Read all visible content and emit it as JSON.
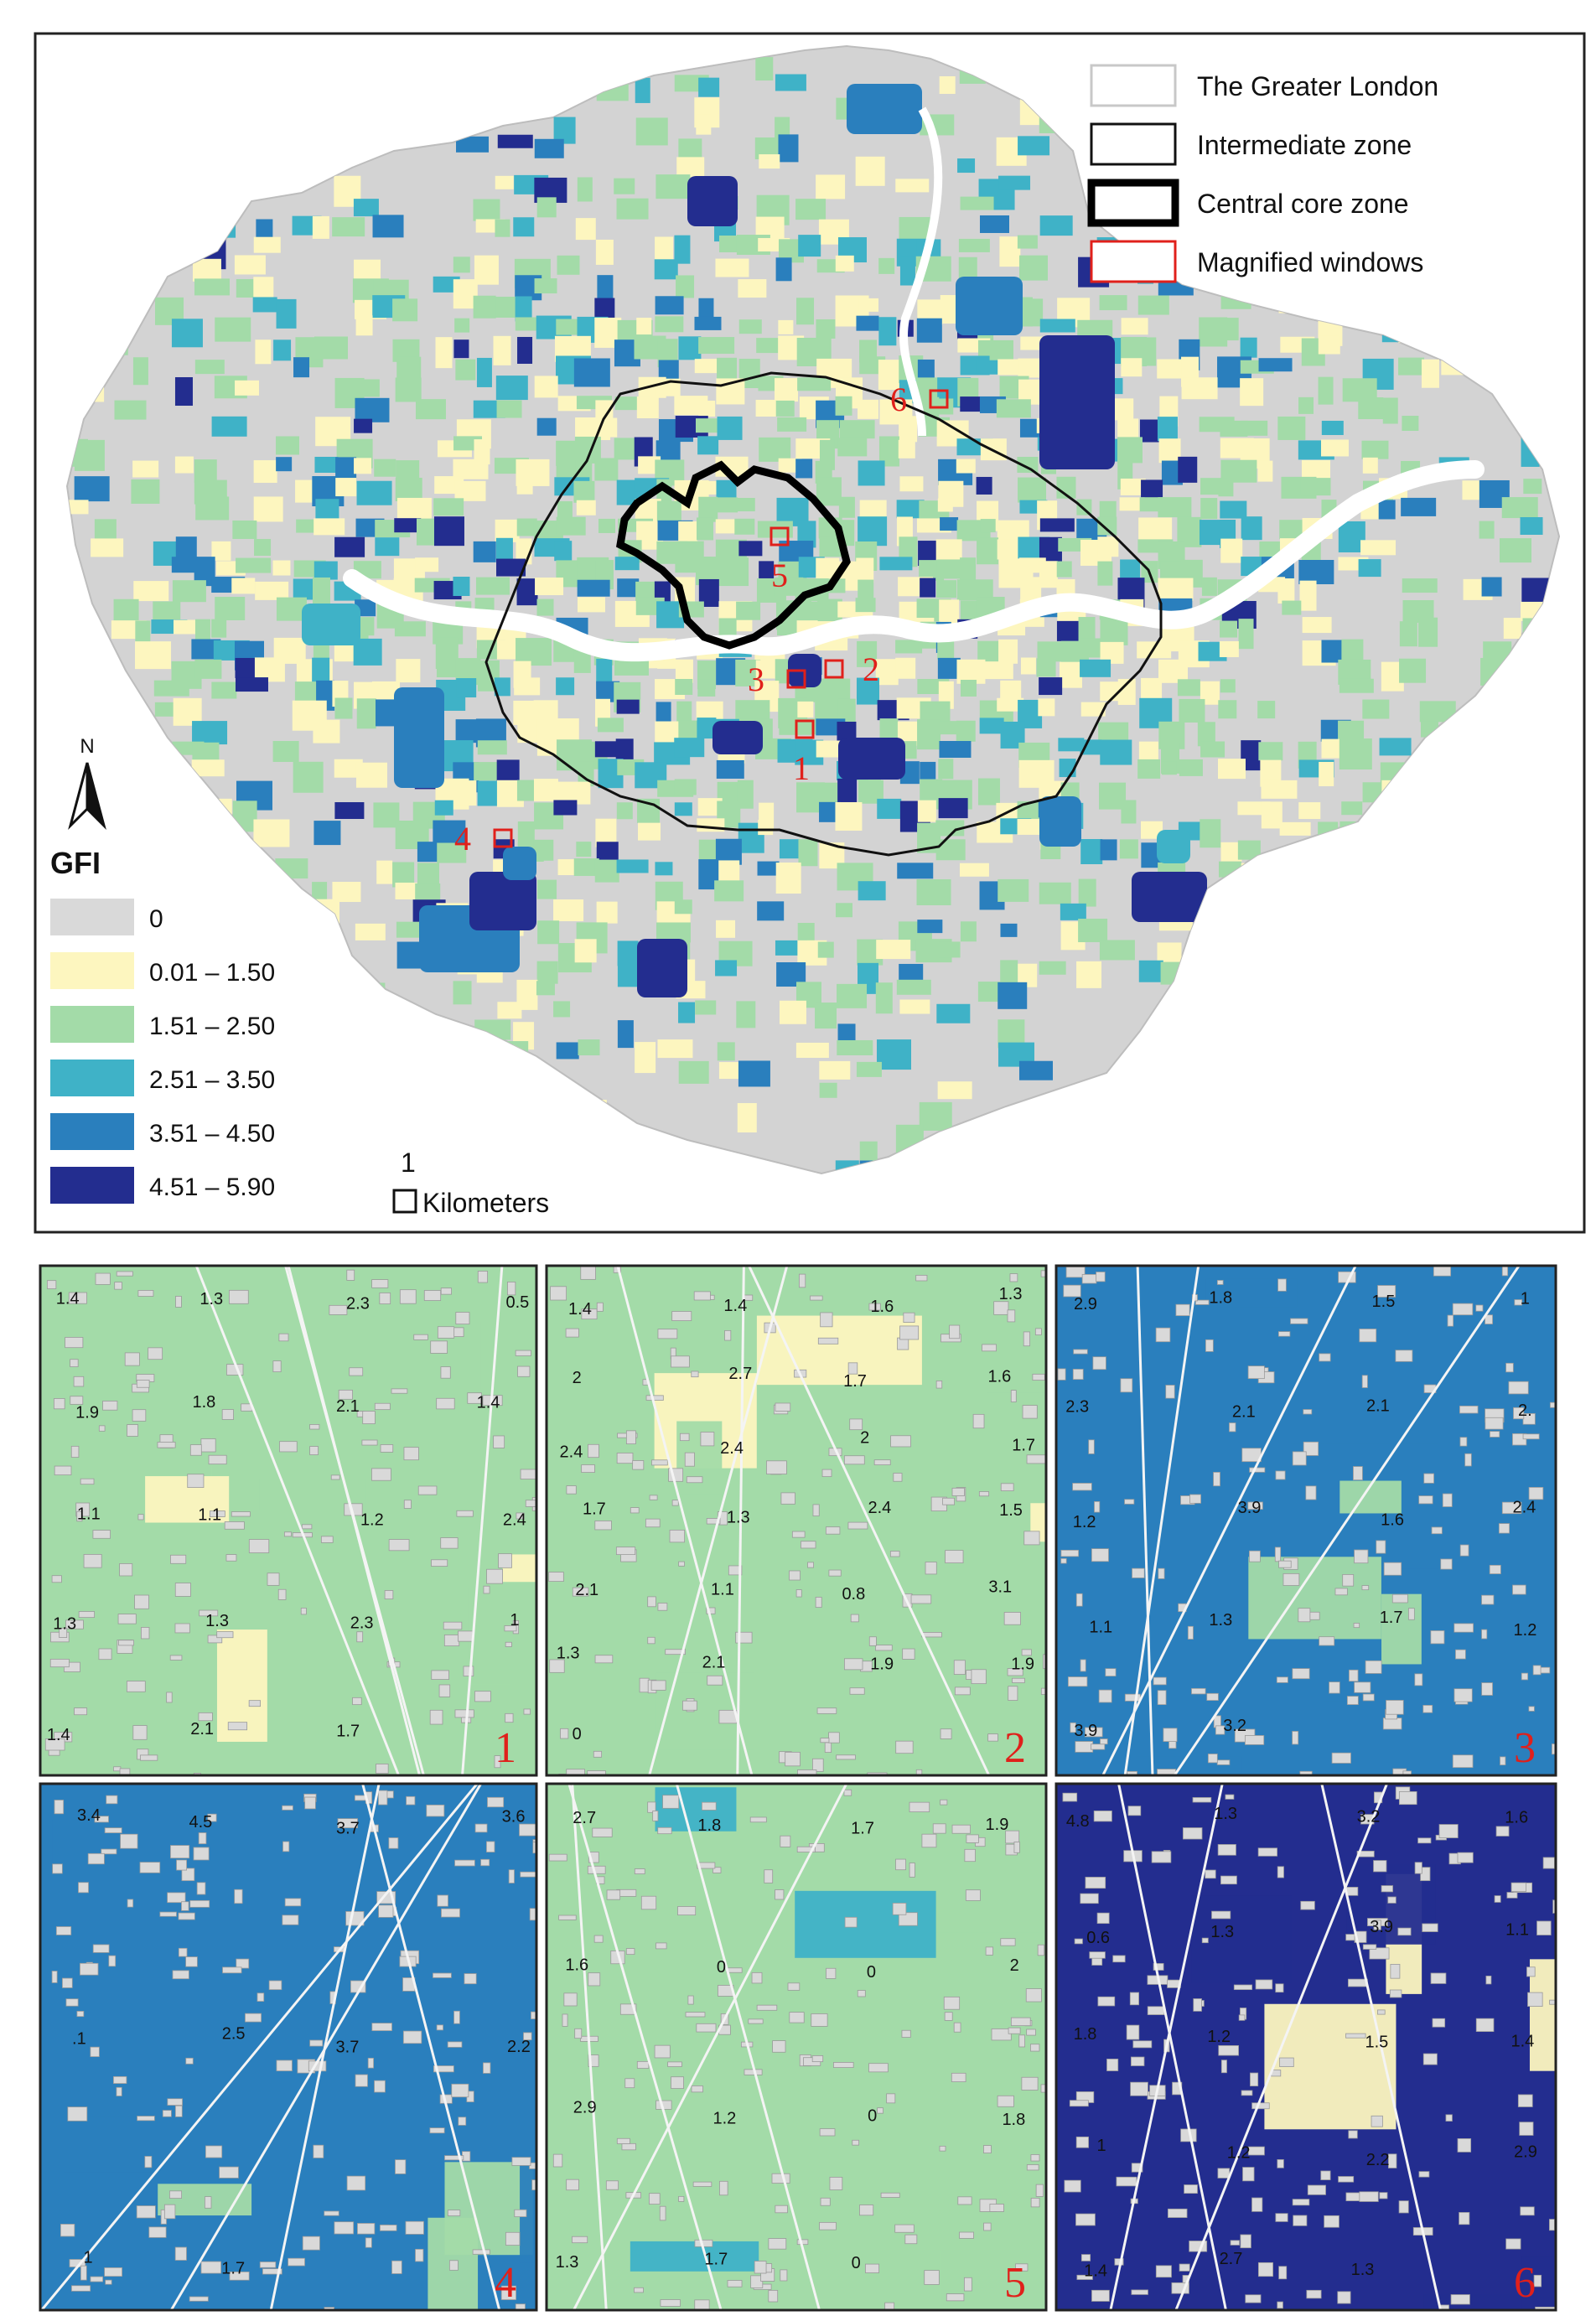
{
  "map": {
    "legend_title": "GFI",
    "north_label": "N",
    "scale_number": "1",
    "scale_unit": "Kilometers",
    "zones_legend": [
      {
        "label": "The Greater London",
        "stroke": "#c8c8c8"
      },
      {
        "label": "Intermediate zone",
        "stroke": "#111111"
      },
      {
        "label": "Central core zone",
        "stroke": "#000000"
      },
      {
        "label": "Magnified windows",
        "stroke": "#e0201b"
      }
    ],
    "gfi_classes": [
      {
        "label": "0",
        "color": "#d9d9d9"
      },
      {
        "label": "0.01 – 1.50",
        "color": "#fdf6bf"
      },
      {
        "label": "1.51 – 2.50",
        "color": "#a3dba8"
      },
      {
        "label": "2.51 – 3.50",
        "color": "#3fb2c7"
      },
      {
        "label": "3.51 – 4.50",
        "color": "#2a7fbd"
      },
      {
        "label": "4.51 – 5.90",
        "color": "#232d8f"
      }
    ],
    "window_markers": [
      "1",
      "2",
      "3",
      "4",
      "5",
      "6"
    ]
  },
  "panels": [
    {
      "id": "1",
      "labels": [
        "1.4",
        "1.3",
        "2.3",
        "0.5",
        "1.9",
        "1.8",
        "2.1",
        "1.4",
        "1.1",
        "1.1",
        "1.2",
        "2.4",
        "1.3",
        "1.3",
        "2.3",
        "1",
        "1.4",
        "2.1",
        "1.7"
      ]
    },
    {
      "id": "2",
      "labels": [
        "1.4",
        "1.4",
        "1.6",
        "1.3",
        "2",
        "2.7",
        "1.7",
        "1.6",
        "2.4",
        "2.4",
        "2",
        "1.7",
        "1.7",
        "1.3",
        "2.4",
        "1.5",
        "2.1",
        "1.1",
        "0.8",
        "3.1",
        "1.3",
        "2.1",
        "1.9",
        "1.9",
        "0"
      ]
    },
    {
      "id": "3",
      "labels": [
        "2.9",
        "1.8",
        "1.5",
        "1",
        "2.3",
        "2.1",
        "2.1",
        "2.",
        "1.2",
        "3.9",
        "1.6",
        "2.4",
        "1.1",
        "1.3",
        "1.7",
        "1.2",
        "3.9",
        "3.2"
      ]
    },
    {
      "id": "4",
      "labels": [
        "3.4",
        "4.5",
        "3.7",
        "3.6",
        ".1",
        "2.5",
        "3.7",
        "2.2",
        "1",
        "1.7"
      ]
    },
    {
      "id": "5",
      "labels": [
        "2.7",
        "1.8",
        "1.7",
        "1.9",
        "1.6",
        "0",
        "0",
        "2",
        "2.9",
        "1.2",
        "0",
        "1.8",
        "1.3",
        "1.7",
        "0"
      ]
    },
    {
      "id": "6",
      "labels": [
        "4.8",
        "1.3",
        "3.2",
        "1.6",
        "0.6",
        "1.3",
        "3.9",
        "1.1",
        "1.8",
        "1.2",
        "1.5",
        "1.4",
        "1",
        "1.2",
        "2.2",
        "2.9",
        "1.4",
        "2.7",
        "1.3"
      ]
    }
  ]
}
